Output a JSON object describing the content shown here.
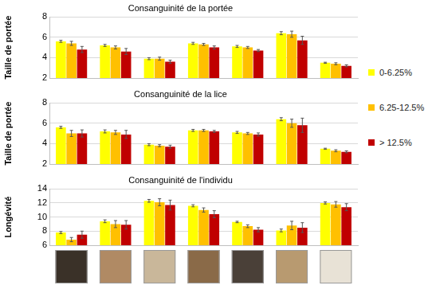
{
  "chart_data": [
    {
      "type": "bar",
      "title": "Consanguinité de la portée",
      "ylabel": "Taille de portée",
      "categories": [
        null,
        null,
        null,
        null,
        null,
        null,
        null
      ],
      "series": [
        {
          "name": "0-6.25%",
          "color": "#ffff00",
          "values": [
            5.6,
            5.2,
            3.9,
            5.4,
            5.1,
            6.4,
            3.5
          ],
          "errors": [
            0.1,
            0.1,
            0.1,
            0.1,
            0.1,
            0.15,
            0.05
          ]
        },
        {
          "name": "6.25-12.5%",
          "color": "#ffc000",
          "values": [
            5.4,
            5.0,
            3.9,
            5.3,
            5.0,
            6.3,
            3.4
          ],
          "errors": [
            0.2,
            0.15,
            0.15,
            0.1,
            0.1,
            0.3,
            0.1
          ]
        },
        {
          "name": "> 12.5%",
          "color": "#c00000",
          "values": [
            4.8,
            4.6,
            3.6,
            5.0,
            4.7,
            5.7,
            3.2
          ],
          "errors": [
            0.3,
            0.3,
            0.15,
            0.15,
            0.1,
            0.4,
            0.1
          ]
        }
      ],
      "ylim": [
        2,
        8
      ],
      "yticks": [
        2,
        4,
        6,
        8
      ],
      "grid": true,
      "tick_labels": "y",
      "legend": "right"
    },
    {
      "type": "bar",
      "title": "Consanguinité de la lice",
      "ylabel": "Taille de portée",
      "categories": [
        null,
        null,
        null,
        null,
        null,
        null,
        null
      ],
      "series": [
        {
          "name": "0-6.25%",
          "color": "#ffff00",
          "values": [
            5.6,
            5.2,
            3.9,
            5.3,
            5.1,
            6.4,
            3.5
          ],
          "errors": [
            0.1,
            0.15,
            0.1,
            0.1,
            0.1,
            0.15,
            0.05
          ]
        },
        {
          "name": "6.25-12.5%",
          "color": "#ffc000",
          "values": [
            5.0,
            5.1,
            3.8,
            5.3,
            5.0,
            6.0,
            3.3
          ],
          "errors": [
            0.3,
            0.2,
            0.1,
            0.1,
            0.1,
            0.4,
            0.1
          ]
        },
        {
          "name": "> 12.5%",
          "color": "#c00000",
          "values": [
            5.0,
            4.9,
            3.7,
            5.2,
            4.9,
            5.8,
            3.2
          ],
          "errors": [
            0.35,
            0.4,
            0.15,
            0.1,
            0.15,
            0.7,
            0.1
          ]
        }
      ],
      "ylim": [
        2,
        8
      ],
      "yticks": [
        2,
        4,
        6,
        8
      ],
      "grid": true,
      "tick_labels": "y"
    },
    {
      "type": "bar",
      "title": "Consanguinité de l'individu",
      "ylabel": "Longévité",
      "categories": [
        null,
        null,
        null,
        null,
        null,
        null,
        null
      ],
      "series": [
        {
          "name": "0-6.25%",
          "color": "#ffff00",
          "values": [
            7.8,
            9.4,
            12.3,
            11.6,
            9.3,
            8.1,
            12.0
          ],
          "errors": [
            0.15,
            0.2,
            0.2,
            0.15,
            0.1,
            0.2,
            0.15
          ]
        },
        {
          "name": "6.25-12.5%",
          "color": "#ffc000",
          "values": [
            6.8,
            9.0,
            12.1,
            11.0,
            8.7,
            8.8,
            11.8
          ],
          "errors": [
            0.3,
            0.5,
            0.5,
            0.3,
            0.2,
            0.6,
            0.4
          ]
        },
        {
          "name": "> 12.5%",
          "color": "#c00000",
          "values": [
            7.5,
            8.9,
            11.7,
            10.4,
            8.2,
            8.5,
            11.4
          ],
          "errors": [
            0.5,
            0.6,
            0.7,
            0.5,
            0.3,
            0.7,
            0.5
          ]
        }
      ],
      "ylim": [
        6,
        14
      ],
      "yticks": [
        6,
        8,
        10,
        12,
        14
      ],
      "grid": true,
      "tick_labels": "y"
    }
  ]
}
